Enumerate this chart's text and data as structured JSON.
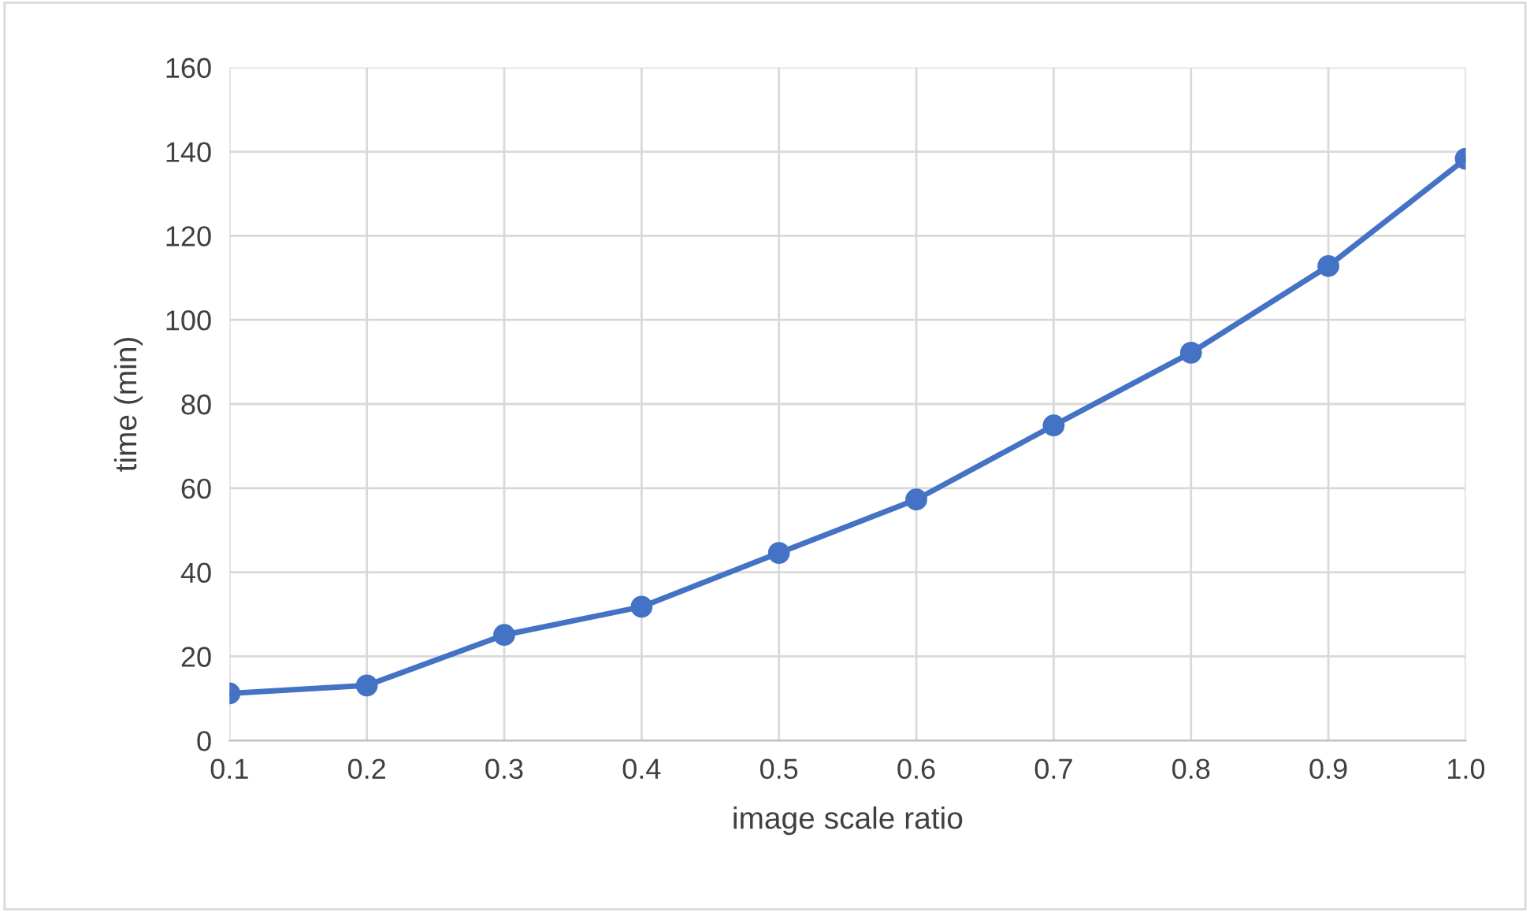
{
  "chart_data": {
    "type": "line",
    "xlabel": "image scale ratio",
    "ylabel": "time (min)",
    "categories": [
      "0.1",
      "0.2",
      "0.3",
      "0.4",
      "0.5",
      "0.6",
      "0.7",
      "0.8",
      "0.9",
      "1.0"
    ],
    "series": [
      {
        "color": "#4472c4",
        "values": [
          11.2,
          13.1,
          25.1,
          31.8,
          44.6,
          57.3,
          74.9,
          92.2,
          112.8,
          138.3
        ]
      }
    ],
    "ylim": [
      0,
      160
    ],
    "yticks": [
      0,
      20,
      40,
      60,
      80,
      100,
      120,
      140,
      160
    ],
    "grid": true,
    "marker": "circle",
    "line_style": "solid"
  }
}
